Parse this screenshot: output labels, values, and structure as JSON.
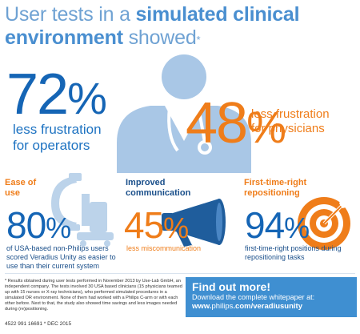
{
  "header": {
    "title_part1": "User tests in a ",
    "title_part2": "simulated clinical",
    "title_part3": "environment",
    "title_part4": " showed",
    "title_mark": "*"
  },
  "stats": {
    "operators": {
      "value": "72",
      "unit": "%",
      "label_line1": "less frustration",
      "label_line2": "for operators"
    },
    "physicians": {
      "value": "48",
      "unit": "%",
      "label_line1": "less frustration",
      "label_line2": "for physicians"
    },
    "ease": {
      "heading_line1": "Ease of",
      "heading_line2": "use",
      "value": "80",
      "unit": "%",
      "label": "of USA-based non-Philips users scored Veradius Unity as easier to use than their current system"
    },
    "communication": {
      "heading_line1": "Improved",
      "heading_line2": "communication",
      "value": "45",
      "unit": "%",
      "label": "less miscommunication"
    },
    "repositioning": {
      "heading_line1": "First-time-right",
      "heading_line2": "repositioning",
      "value": "94",
      "unit": "%",
      "label": "first-time-right positions during repositioning tasks"
    }
  },
  "footnote": "* Results obtained during user tests performed in November 2013 by Use-Lab GmbH, an independent company. The tests involved 30 USA based clinicians (15 physicians teamed up with 15 nurses or X-ray technicians), who performed simulated procedures in a simulated OR environment. None of them had worked with a Philips C-arm or with each other before. Next to that, the study also showed time savings and less images needed during (re)positioning.",
  "doc_id": "4522 991 16691 * DEC 2015",
  "cta": {
    "title": "Find out more!",
    "body": "Download the complete whitepaper at:",
    "url_prefix": "www.",
    "url_brand": "philips",
    "url_suffix": ".com/veradiusunity"
  },
  "icons": {
    "doctor": "doctor-icon",
    "carm": "c-arm-icon",
    "megaphone": "megaphone-icon",
    "target": "target-icon"
  },
  "colors": {
    "blue_dark": "#1565b5",
    "blue_light": "#6fa2d3",
    "orange": "#ef7d1a",
    "cta_blue": "#3f8fd1"
  }
}
